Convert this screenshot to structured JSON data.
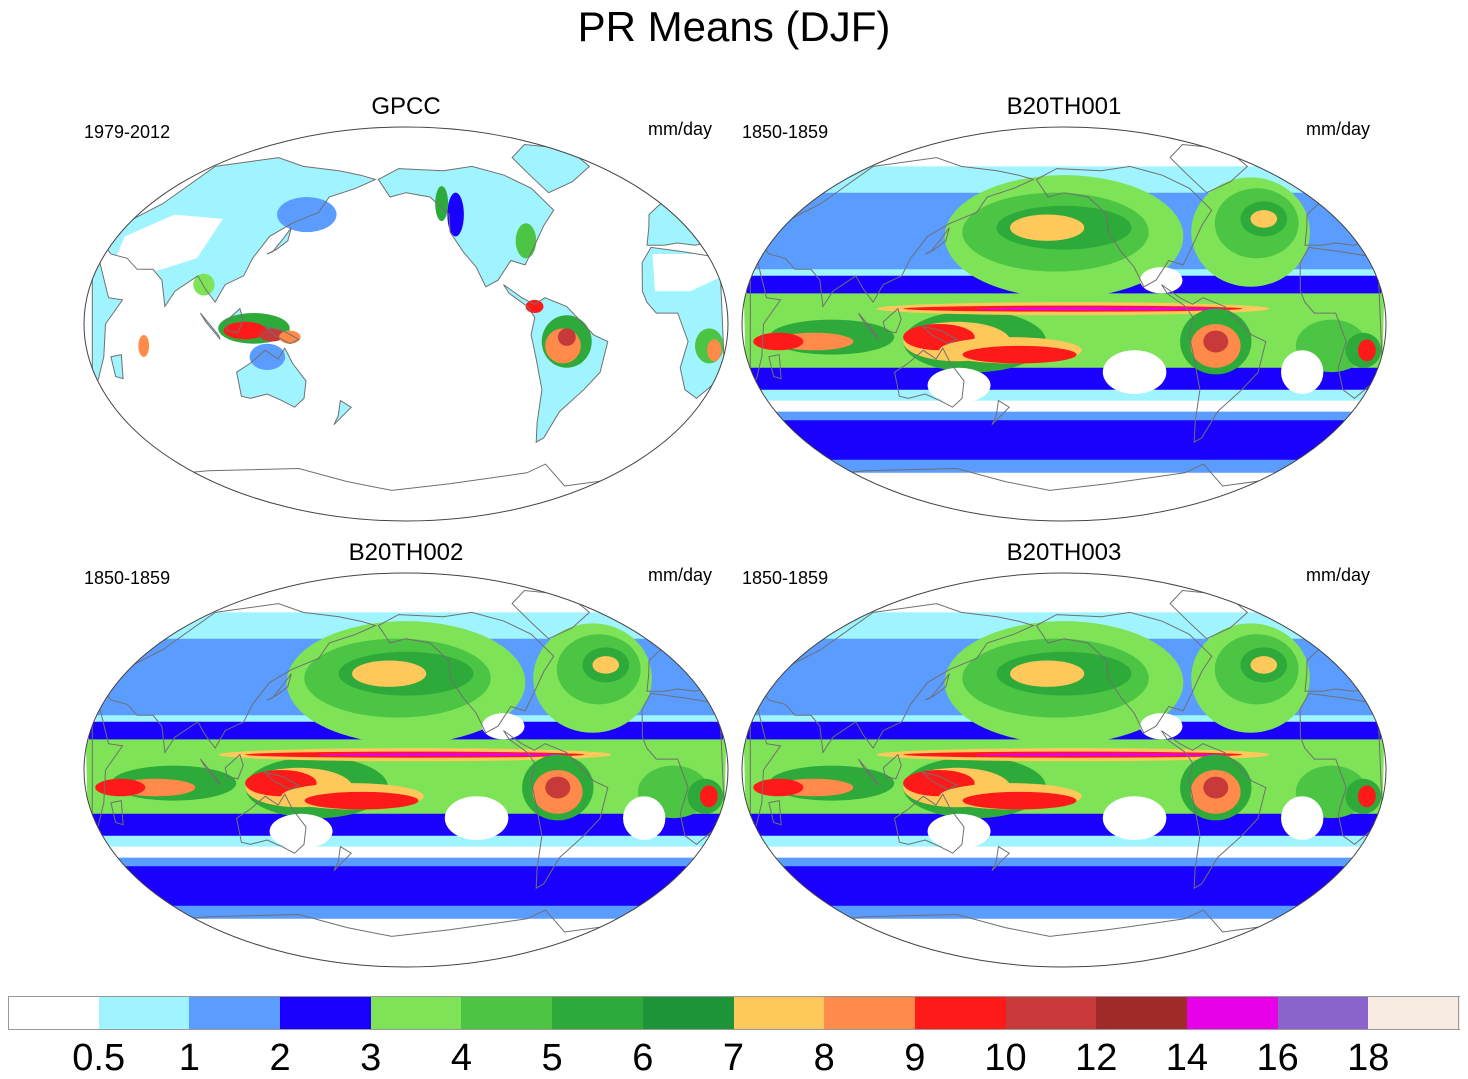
{
  "title": "PR Means (DJF)",
  "panels": [
    {
      "title": "GPCC",
      "period": "1979-2012",
      "units": "mm/day",
      "kind": "obs"
    },
    {
      "title": "B20TH001",
      "period": "1850-1859",
      "units": "mm/day",
      "kind": "model"
    },
    {
      "title": "B20TH002",
      "period": "1850-1859",
      "units": "mm/day",
      "kind": "model"
    },
    {
      "title": "B20TH003",
      "period": "1850-1859",
      "units": "mm/day",
      "kind": "model"
    }
  ],
  "colorbar": {
    "labels": [
      "0.5",
      "1",
      "2",
      "3",
      "4",
      "5",
      "6",
      "7",
      "8",
      "9",
      "10",
      "12",
      "14",
      "16",
      "18"
    ],
    "colors": [
      "#ffffff",
      "#a0f4ff",
      "#5a9cff",
      "#1a00ff",
      "#7ee356",
      "#4cc444",
      "#2eaa3a",
      "#1e9438",
      "#ffc85a",
      "#ff8a4a",
      "#ff1a1a",
      "#c83a3a",
      "#a02a2a",
      "#e800e8",
      "#8a64cc",
      "#f8ece2"
    ]
  }
}
